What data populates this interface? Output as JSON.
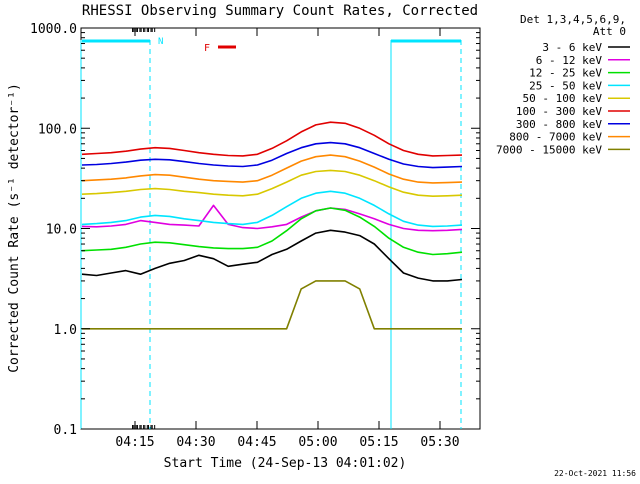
{
  "chart_data": {
    "type": "line",
    "title": "RHESSI Observing Summary Count Rates, Corrected",
    "xlabel": "Start Time (24-Sep-13 04:01:02)",
    "ylabel": "Corrected Count Rate (s⁻¹ detector⁻¹)",
    "y_scale": "log",
    "ylim": [
      0.1,
      1000.0
    ],
    "y_ticks": [
      "1000.0",
      "100.0",
      "10.0",
      "1.0",
      "0.1"
    ],
    "x_ticks": [
      "04:15",
      "04:30",
      "04:45",
      "05:00",
      "05:15",
      "05:30"
    ],
    "detector_info": {
      "line1": "Det 1,3,4,5,6,9,",
      "line2": "Att 0"
    },
    "flags": {
      "night_label": "N",
      "flare_label": "F",
      "night_color": "#00e5ff",
      "flare_color": "#e00000"
    },
    "footer_date": "22-Oct-2021 11:56",
    "series": [
      {
        "name": "3 - 6 keV",
        "color": "#000000",
        "values": [
          3.5,
          3.4,
          3.6,
          3.8,
          3.5,
          4.0,
          4.5,
          4.8,
          5.4,
          5.0,
          4.2,
          4.4,
          4.6,
          5.5,
          6.2,
          7.5,
          9.0,
          9.6,
          9.2,
          8.5,
          7.0,
          5.0,
          3.6,
          3.2,
          3.0,
          3.0,
          3.1
        ]
      },
      {
        "name": "6 - 12 keV",
        "color": "#e000e0",
        "values": [
          10.5,
          10.4,
          10.6,
          11.0,
          12.0,
          11.5,
          11.0,
          10.8,
          10.6,
          17.0,
          11.0,
          10.2,
          10.0,
          10.4,
          11.0,
          13.0,
          15.0,
          16.0,
          15.5,
          14.0,
          12.5,
          11.0,
          10.0,
          9.6,
          9.5,
          9.6,
          9.8
        ]
      },
      {
        "name": "12 - 25 keV",
        "color": "#00e000",
        "values": [
          6.0,
          6.1,
          6.2,
          6.5,
          7.0,
          7.3,
          7.2,
          6.9,
          6.6,
          6.4,
          6.3,
          6.3,
          6.5,
          7.5,
          9.5,
          12.5,
          15.0,
          16.0,
          15.2,
          13.0,
          10.5,
          8.0,
          6.5,
          5.8,
          5.5,
          5.6,
          5.8
        ]
      },
      {
        "name": "25 - 50 keV",
        "color": "#00e5ff",
        "values": [
          11.0,
          11.2,
          11.5,
          12.0,
          13.0,
          13.5,
          13.2,
          12.5,
          12.0,
          11.5,
          11.2,
          11.0,
          11.5,
          13.5,
          16.5,
          20.0,
          22.5,
          23.5,
          22.5,
          20.0,
          17.0,
          14.0,
          11.8,
          10.8,
          10.5,
          10.6,
          10.8
        ]
      },
      {
        "name": "50 - 100 keV",
        "color": "#d8c800",
        "values": [
          22.0,
          22.3,
          22.8,
          23.5,
          24.5,
          25.0,
          24.5,
          23.5,
          22.8,
          22.0,
          21.5,
          21.2,
          22.0,
          25.0,
          29.0,
          34.0,
          37.0,
          38.0,
          37.0,
          34.0,
          30.0,
          26.0,
          23.0,
          21.5,
          21.0,
          21.2,
          21.5
        ]
      },
      {
        "name": "100 - 300 keV",
        "color": "#e00000",
        "values": [
          55.0,
          56.0,
          57.0,
          59.0,
          62.0,
          64.0,
          63.0,
          60.0,
          57.0,
          55.0,
          53.5,
          53.0,
          55.0,
          63.0,
          75.0,
          92.0,
          108.0,
          115.0,
          112.0,
          100.0,
          85.0,
          70.0,
          60.0,
          55.0,
          53.0,
          53.5,
          54.0
        ]
      },
      {
        "name": "300 - 800 keV",
        "color": "#0000e0",
        "values": [
          43.0,
          43.5,
          44.5,
          46.0,
          48.0,
          49.0,
          48.5,
          46.5,
          44.5,
          43.0,
          42.0,
          41.5,
          43.0,
          48.0,
          56.0,
          64.0,
          70.0,
          72.0,
          70.0,
          64.0,
          56.0,
          49.0,
          44.0,
          41.5,
          40.5,
          41.0,
          41.5
        ]
      },
      {
        "name": "800 - 7000 keV",
        "color": "#ff8800",
        "values": [
          30.0,
          30.5,
          31.0,
          32.0,
          33.5,
          34.5,
          34.0,
          32.5,
          31.0,
          30.0,
          29.5,
          29.0,
          30.0,
          34.0,
          40.0,
          47.0,
          52.0,
          54.0,
          52.0,
          47.0,
          41.0,
          35.0,
          31.0,
          29.0,
          28.5,
          28.7,
          29.0
        ]
      },
      {
        "name": "7000 - 15000 keV",
        "color": "#808000",
        "values": [
          1.0,
          1.0,
          1.0,
          1.0,
          1.0,
          1.0,
          1.0,
          1.0,
          1.0,
          1.0,
          1.0,
          1.0,
          1.0,
          1.0,
          1.0,
          2.5,
          3.0,
          3.0,
          3.0,
          2.5,
          1.0,
          1.0,
          1.0,
          1.0,
          1.0,
          1.0,
          1.0
        ]
      }
    ]
  }
}
